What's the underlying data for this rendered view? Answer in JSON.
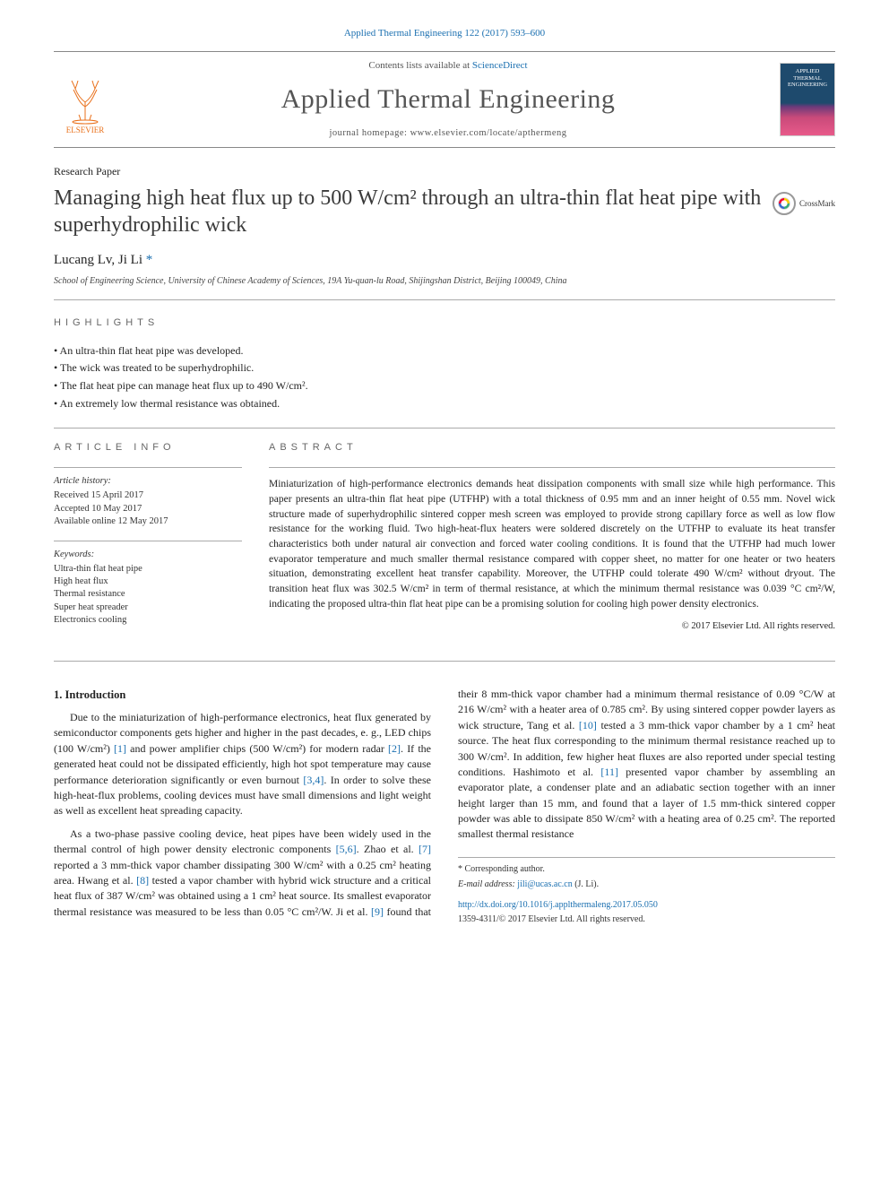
{
  "citation": "Applied Thermal Engineering 122 (2017) 593–600",
  "masthead": {
    "contents_prefix": "Contents lists available at ",
    "contents_link": "ScienceDirect",
    "journal": "Applied Thermal Engineering",
    "homepage_prefix": "journal homepage: ",
    "homepage_url": "www.elsevier.com/locate/apthermeng",
    "publisher_name": "ELSEVIER",
    "cover_title": "APPLIED THERMAL ENGINEERING"
  },
  "article_type": "Research Paper",
  "title": "Managing high heat flux up to 500 W/cm² through an ultra-thin flat heat pipe with superhydrophilic wick",
  "crossmark_label": "CrossMark",
  "authors_html": "Lucang Lv, Ji Li",
  "corr_marker": "*",
  "affiliation": "School of Engineering Science, University of Chinese Academy of Sciences, 19A Yu-quan-lu Road, Shijingshan District, Beijing 100049, China",
  "highlights_label": "highlights",
  "highlights": [
    "An ultra-thin flat heat pipe was developed.",
    "The wick was treated to be superhydrophilic.",
    "The flat heat pipe can manage heat flux up to 490 W/cm².",
    "An extremely low thermal resistance was obtained."
  ],
  "info_label": "article info",
  "abstract_label": "abstract",
  "history": {
    "header": "Article history:",
    "received": "Received 15 April 2017",
    "accepted": "Accepted 10 May 2017",
    "online": "Available online 12 May 2017"
  },
  "keywords": {
    "header": "Keywords:",
    "items": [
      "Ultra-thin flat heat pipe",
      "High heat flux",
      "Thermal resistance",
      "Super heat spreader",
      "Electronics cooling"
    ]
  },
  "abstract": "Miniaturization of high-performance electronics demands heat dissipation components with small size while high performance. This paper presents an ultra-thin flat heat pipe (UTFHP) with a total thickness of 0.95 mm and an inner height of 0.55 mm. Novel wick structure made of superhydrophilic sintered copper mesh screen was employed to provide strong capillary force as well as low flow resistance for the working fluid. Two high-heat-flux heaters were soldered discretely on the UTFHP to evaluate its heat transfer characteristics both under natural air convection and forced water cooling conditions. It is found that the UTFHP had much lower evaporator temperature and much smaller thermal resistance compared with copper sheet, no matter for one heater or two heaters situation, demonstrating excellent heat transfer capability. Moreover, the UTFHP could tolerate 490 W/cm² without dryout. The transition heat flux was 302.5 W/cm² in term of thermal resistance, at which the minimum thermal resistance was 0.039 °C cm²/W, indicating the proposed ultra-thin flat heat pipe can be a promising solution for cooling high power density electronics.",
  "abstract_copyright": "© 2017 Elsevier Ltd. All rights reserved.",
  "section1_title": "1. Introduction",
  "para1": "Due to the miniaturization of high-performance electronics, heat flux generated by semiconductor components gets higher and higher in the past decades, e. g., LED chips (100 W/cm²) [1] and power amplifier chips (500 W/cm²) for modern radar [2]. If the generated heat could not be dissipated efficiently, high hot spot temperature may cause performance deterioration significantly or even burnout [3,4]. In order to solve these high-heat-flux problems, cooling devices must have small dimensions and light weight as well as excellent heat spreading capacity.",
  "para2": "As a two-phase passive cooling device, heat pipes have been widely used in the thermal control of high power density electronic components [5,6]. Zhao et al. [7] reported a 3 mm-thick vapor chamber dissipating 300 W/cm² with a 0.25 cm² heating area. Hwang et al. [8] tested a vapor chamber with hybrid wick structure and a critical heat flux of 387 W/cm² was obtained using a 1 cm² heat source. Its smallest evaporator thermal resistance was measured to be less than 0.05 °C cm²/W. Ji et al. [9] found that their 8 mm-thick vapor chamber had a minimum thermal resistance of 0.09 °C/W at 216 W/cm² with a heater area of 0.785 cm². By using sintered copper powder layers as wick structure, Tang et al. [10] tested a 3 mm-thick vapor chamber by a 1 cm² heat source. The heat flux corresponding to the minimum thermal resistance reached up to 300 W/cm². In addition, few higher heat fluxes are also reported under special testing conditions. Hashimoto et al. [11] presented vapor chamber by assembling an evaporator plate, a condenser plate and an adiabatic section together with an inner height larger than 15 mm, and found that a layer of 1.5 mm-thick sintered copper powder was able to dissipate 850 W/cm² with a heating area of 0.25 cm². The reported smallest thermal resistance",
  "footer": {
    "corr_label": "* Corresponding author.",
    "email_label": "E-mail address: ",
    "email": "jili@ucas.ac.cn",
    "email_name": "(J. Li).",
    "doi": "http://dx.doi.org/10.1016/j.applthermaleng.2017.05.050",
    "issn_line": "1359-4311/© 2017 Elsevier Ltd. All rights reserved."
  },
  "colors": {
    "link": "#1a6fb0",
    "elsevier_orange": "#e9711c",
    "text": "#232323",
    "rule": "#aaaaaa"
  }
}
